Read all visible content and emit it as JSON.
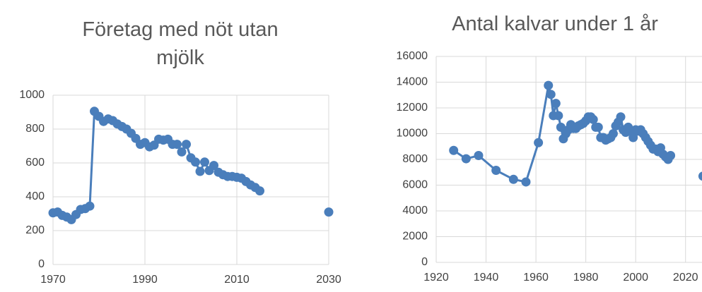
{
  "chart_data": [
    {
      "type": "line",
      "title": "Företag med nöt utan mjölk",
      "x": [
        1970,
        1971,
        1972,
        1973,
        1974,
        1975,
        1976,
        1977,
        1978,
        1979,
        1980,
        1981,
        1982,
        1983,
        1984,
        1985,
        1986,
        1987,
        1988,
        1989,
        1990,
        1991,
        1992,
        1993,
        1994,
        1995,
        1996,
        1997,
        1998,
        1999,
        2000,
        2001,
        2002,
        2003,
        2004,
        2005,
        2006,
        2007,
        2008,
        2009,
        2010,
        2011,
        2012,
        2013,
        2014,
        2015,
        2030
      ],
      "series": [
        {
          "color": "#4a7ebb",
          "values": [
            305,
            310,
            290,
            280,
            265,
            295,
            325,
            330,
            345,
            905,
            875,
            845,
            860,
            850,
            830,
            815,
            800,
            775,
            745,
            710,
            720,
            695,
            705,
            740,
            735,
            740,
            710,
            710,
            665,
            710,
            630,
            605,
            550,
            605,
            555,
            585,
            545,
            530,
            520,
            520,
            515,
            510,
            490,
            470,
            455,
            435,
            310
          ]
        }
      ],
      "xlim": [
        1970,
        2030
      ],
      "xticks": [
        1970,
        1990,
        2010,
        2030
      ],
      "ylim": [
        0,
        1000
      ],
      "yticks": [
        0,
        200,
        400,
        600,
        800,
        1000
      ],
      "grid": true
    },
    {
      "type": "line",
      "title": "Antal kalvar under 1 år",
      "x": [
        1927,
        1932,
        1937,
        1944,
        1951,
        1956,
        1961,
        1965,
        1966,
        1967,
        1968,
        1969,
        1970,
        1971,
        1972,
        1973,
        1974,
        1975,
        1976,
        1977,
        1978,
        1979,
        1980,
        1981,
        1982,
        1983,
        1984,
        1985,
        1986,
        1987,
        1988,
        1989,
        1990,
        1991,
        1992,
        1993,
        1994,
        1995,
        1996,
        1997,
        1998,
        1999,
        2000,
        2001,
        2002,
        2003,
        2004,
        2005,
        2006,
        2007,
        2008,
        2009,
        2010,
        2011,
        2012,
        2013,
        2014,
        2027
      ],
      "series": [
        {
          "color": "#4a7ebb",
          "values": [
            8700,
            8050,
            8300,
            7150,
            6450,
            6250,
            9300,
            13750,
            13050,
            11400,
            12350,
            11400,
            10500,
            9600,
            10000,
            10300,
            10700,
            10400,
            10400,
            10600,
            10700,
            10800,
            11000,
            11300,
            11300,
            11100,
            10500,
            10500,
            9700,
            9700,
            9500,
            9600,
            9700,
            10000,
            10600,
            10900,
            11300,
            10300,
            10100,
            10500,
            10200,
            9700,
            10300,
            10200,
            10300,
            10000,
            9700,
            9400,
            9100,
            8800,
            8800,
            8600,
            8900,
            8400,
            8200,
            8000,
            8300,
            6700
          ]
        }
      ],
      "xlim": [
        1920,
        2030
      ],
      "xticks": [
        1920,
        1940,
        1960,
        1980,
        2000,
        2020
      ],
      "ylim": [
        0,
        16000
      ],
      "yticks": [
        0,
        2000,
        4000,
        6000,
        8000,
        10000,
        12000,
        14000,
        16000
      ],
      "grid": true
    }
  ]
}
